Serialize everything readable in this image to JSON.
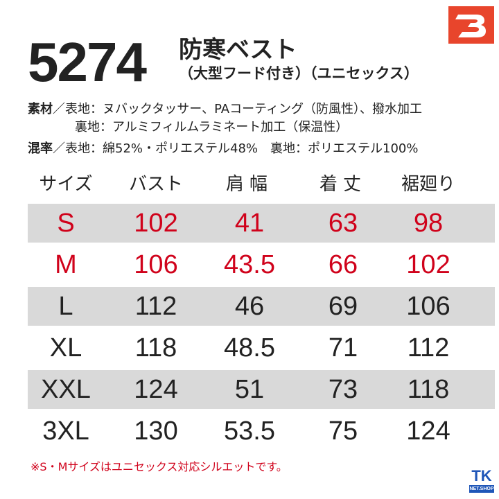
{
  "brand": {
    "logo_icon": "burtle-b-logo",
    "logo_color": "#e8452c"
  },
  "product": {
    "model": "5274",
    "title": "防寒ベスト",
    "subtitle": "（大型フード付き）（ユニセックス）"
  },
  "specs": {
    "material_label": "素材",
    "material_outer": "／表地：ヌバックタッサー、PAコーティング（防風性）、撥水加工",
    "material_lining": "裏地：アルミフィルムラミネート加工（保温性）",
    "blend_label": "混率",
    "blend_text": "／表地：綿52%・ポリエステル48%　裏地：ポリエステル100%"
  },
  "size_table": {
    "headers": [
      "サイズ",
      "バスト",
      "肩幅",
      "着丈",
      "裾廻り"
    ],
    "rows": [
      [
        "S",
        "102",
        "41",
        "63",
        "98"
      ],
      [
        "M",
        "106",
        "43.5",
        "66",
        "102"
      ],
      [
        "L",
        "112",
        "46",
        "69",
        "106"
      ],
      [
        "XL",
        "118",
        "48.5",
        "71",
        "112"
      ],
      [
        "XXL",
        "124",
        "51",
        "73",
        "118"
      ],
      [
        "3XL",
        "130",
        "53.5",
        "75",
        "124"
      ]
    ],
    "highlight_color": "#d0021b",
    "shade_color": "#d9d9d9"
  },
  "note": "※S・Mサイズはユニセックス対応シルエットです。",
  "shop": {
    "logo_text": "TK",
    "logo_subtext": "NET.SHOP",
    "color": "#1f56b8"
  }
}
